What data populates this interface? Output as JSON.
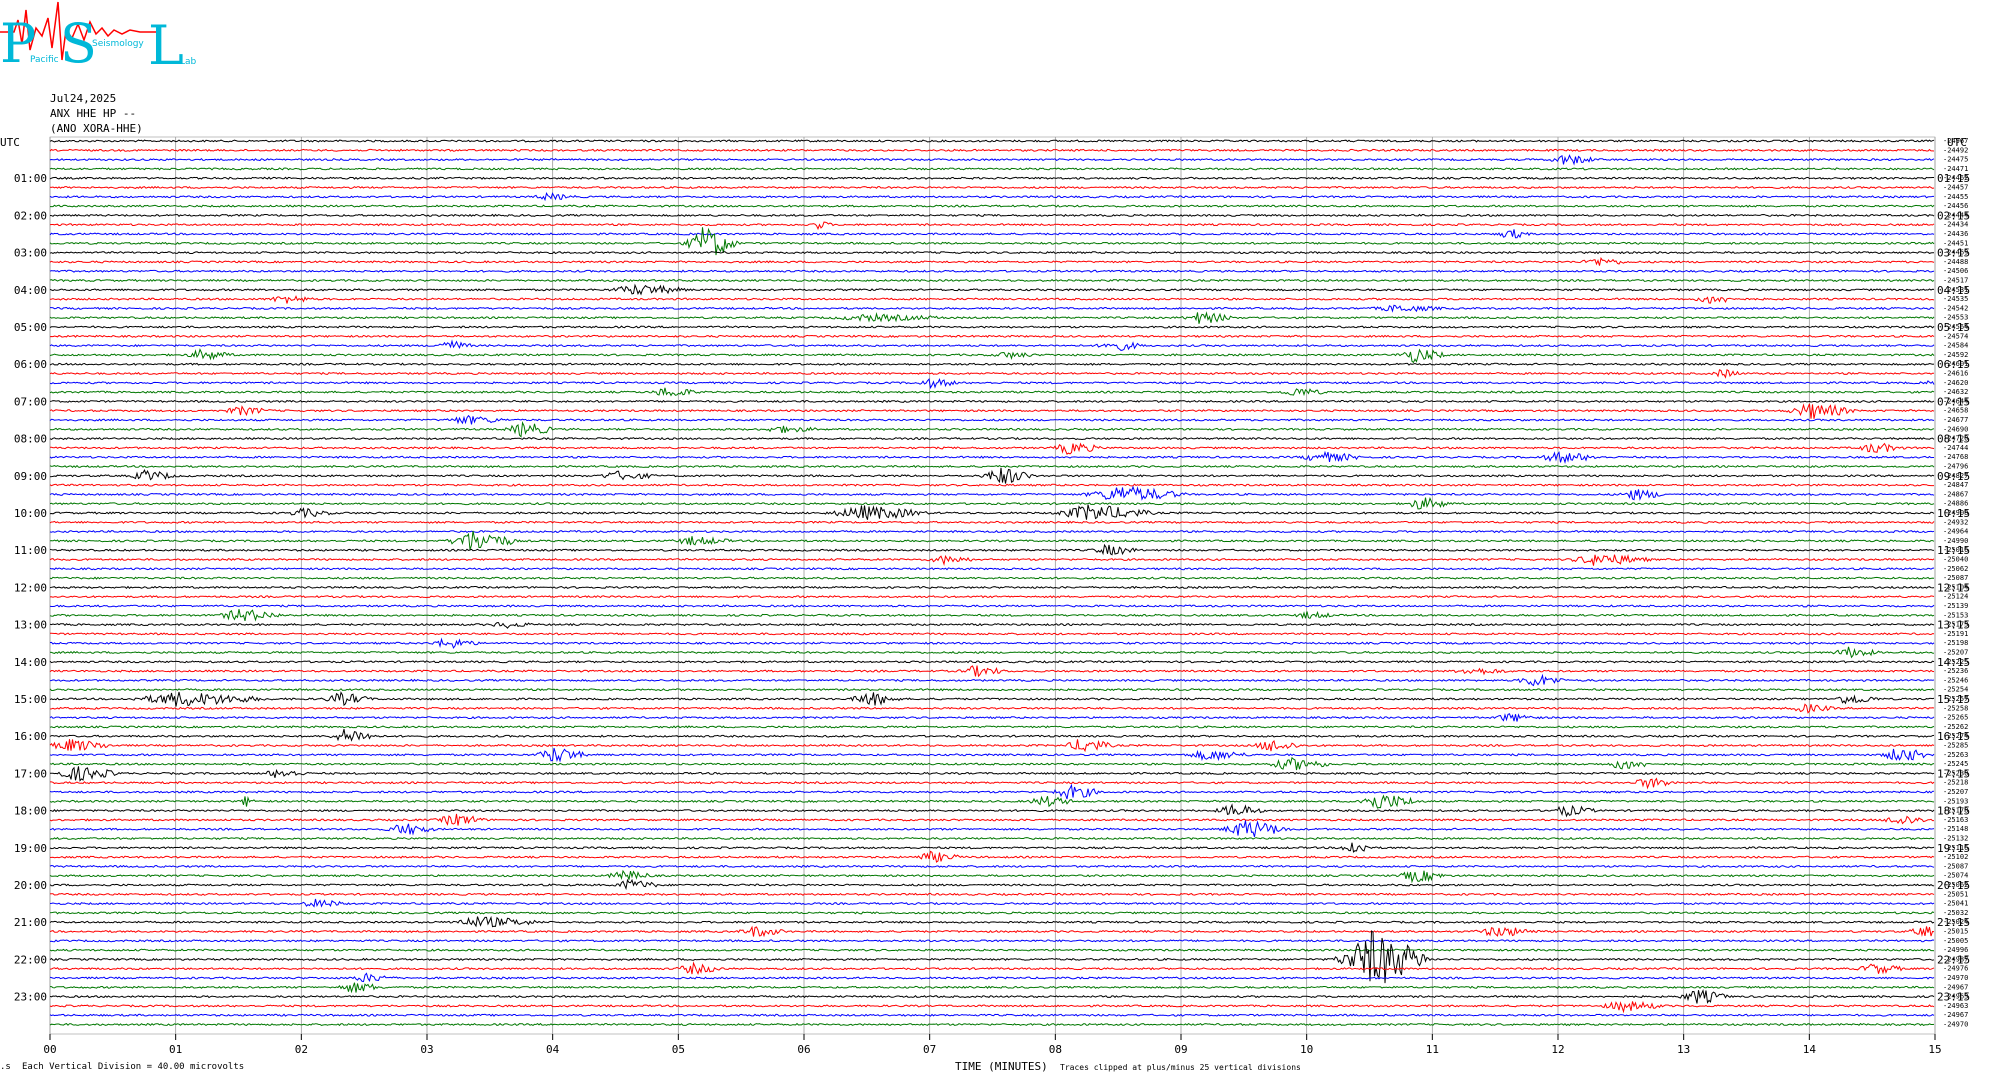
{
  "logo": {
    "letters": [
      "P",
      "S",
      "L"
    ],
    "small_words": [
      "Pacific",
      "Seismology",
      "Lab"
    ],
    "color_letters": "#00b8d8",
    "color_trace": "#ff0000"
  },
  "header": {
    "date": "Jul24,2025",
    "station": "ANX HHE HP --",
    "code": "(ANO XORA-HHE)"
  },
  "footer": {
    "scale": "Each Vertical Division =   40.00 microvolts",
    "xlabel": "TIME (MINUTES)",
    "clip_note": "Traces clipped at plus/minus 25 vertical divisions"
  },
  "chart_data": {
    "type": "line",
    "left_axis_title": "UTC",
    "right_axis_title": "UTC",
    "x_ticks": [
      "00",
      "01",
      "02",
      "03",
      "04",
      "05",
      "06",
      "07",
      "08",
      "09",
      "10",
      "11",
      "12",
      "13",
      "14",
      "15"
    ],
    "x_range": [
      0,
      15
    ],
    "trace_minutes": 15,
    "colors": [
      "#000000",
      "#ff0000",
      "#0000ff",
      "#007700"
    ],
    "left_hour_labels": [
      "01:00",
      "02:00",
      "03:00",
      "04:00",
      "05:00",
      "06:00",
      "07:00",
      "08:00",
      "09:00",
      "10:00",
      "11:00",
      "12:00",
      "13:00",
      "14:00",
      "15:00",
      "16:00",
      "17:00",
      "18:00",
      "19:00",
      "20:00",
      "21:00",
      "22:00",
      "23:00"
    ],
    "right_hour_labels": [
      "01:15",
      "02:15",
      "03:15",
      "04:15",
      "05:15",
      "06:15",
      "07:15",
      "08:15",
      "09:15",
      "10:15",
      "11:15",
      "12:15",
      "13:15",
      "14:15",
      "15:15",
      "16:15",
      "17:15",
      "18:15",
      "19:15",
      "20:15",
      "21:15",
      "22:15",
      "23:15"
    ],
    "offsets": [
      "-24967",
      "-24492",
      "-24475",
      "-24471",
      "-24462",
      "-24457",
      "-24455",
      "-24456",
      "-24444",
      "-24434",
      "-24436",
      "-24451",
      "-24469",
      "-24488",
      "-24506",
      "-24517",
      "-24531",
      "-24535",
      "-24542",
      "-24553",
      "-24564",
      "-24574",
      "-24584",
      "-24592",
      "-24601",
      "-24616",
      "-24620",
      "-24632",
      "-24644",
      "-24658",
      "-24677",
      "-24690",
      "-24720",
      "-24744",
      "-24768",
      "-24796",
      "-24827",
      "-24847",
      "-24867",
      "-24886",
      "-24908",
      "-24932",
      "-24964",
      "-24990",
      "-25016",
      "-25040",
      "-25062",
      "-25087",
      "-25104",
      "-25124",
      "-25139",
      "-25153",
      "-25173",
      "-25191",
      "-25198",
      "-25207",
      "-25225",
      "-25236",
      "-25246",
      "-25254",
      "-25257",
      "-25258",
      "-25265",
      "-25262",
      "-25274",
      "-25285",
      "-25263",
      "-25245",
      "-25230",
      "-25218",
      "-25207",
      "-25193",
      "-25178",
      "-25163",
      "-25148",
      "-25132",
      "-25116",
      "-25102",
      "-25087",
      "-25074",
      "-25062",
      "-25051",
      "-25041",
      "-25032",
      "-25024",
      "-25015",
      "-25005",
      "-24996",
      "-24987",
      "-24976",
      "-24970",
      "-24967",
      "-24963",
      "-24963",
      "-24967",
      "-24970"
    ],
    "events": [
      {
        "trace": 2,
        "minute": 12.05,
        "amp": 6,
        "dur": 0.3
      },
      {
        "trace": 6,
        "minute": 3.95,
        "amp": 4,
        "dur": 0.3
      },
      {
        "trace": 9,
        "minute": 6.1,
        "amp": 5,
        "dur": 0.15
      },
      {
        "trace": 10,
        "minute": 11.6,
        "amp": 6,
        "dur": 0.2
      },
      {
        "trace": 11,
        "minute": 5.2,
        "amp": 18,
        "dur": 0.3
      },
      {
        "trace": 13,
        "minute": 12.3,
        "amp": 5,
        "dur": 0.3
      },
      {
        "trace": 16,
        "minute": 4.65,
        "amp": 6,
        "dur": 0.5
      },
      {
        "trace": 17,
        "minute": 1.85,
        "amp": 5,
        "dur": 0.3
      },
      {
        "trace": 17,
        "minute": 13.2,
        "amp": 5,
        "dur": 0.3
      },
      {
        "trace": 18,
        "minute": 10.7,
        "amp": 4,
        "dur": 0.5
      },
      {
        "trace": 19,
        "minute": 6.5,
        "amp": 4,
        "dur": 0.8
      },
      {
        "trace": 19,
        "minute": 9.15,
        "amp": 7,
        "dur": 0.3
      },
      {
        "trace": 22,
        "minute": 3.15,
        "amp": 6,
        "dur": 0.25
      },
      {
        "trace": 22,
        "minute": 8.45,
        "amp": 6,
        "dur": 0.3
      },
      {
        "trace": 23,
        "minute": 1.2,
        "amp": 6,
        "dur": 0.3
      },
      {
        "trace": 23,
        "minute": 7.6,
        "amp": 4,
        "dur": 0.3
      },
      {
        "trace": 23,
        "minute": 10.85,
        "amp": 8,
        "dur": 0.3
      },
      {
        "trace": 25,
        "minute": 13.3,
        "amp": 5,
        "dur": 0.2
      },
      {
        "trace": 26,
        "minute": 7.0,
        "amp": 5,
        "dur": 0.3
      },
      {
        "trace": 26,
        "minute": 15.0,
        "amp": 6,
        "dur": 0.2
      },
      {
        "trace": 27,
        "minute": 4.9,
        "amp": 6,
        "dur": 0.3
      },
      {
        "trace": 27,
        "minute": 9.9,
        "amp": 5,
        "dur": 0.3
      },
      {
        "trace": 29,
        "minute": 1.5,
        "amp": 5,
        "dur": 0.3
      },
      {
        "trace": 29,
        "minute": 14.0,
        "amp": 9,
        "dur": 0.4
      },
      {
        "trace": 30,
        "minute": 3.3,
        "amp": 5,
        "dur": 0.4
      },
      {
        "trace": 31,
        "minute": 3.75,
        "amp": 8,
        "dur": 0.3
      },
      {
        "trace": 31,
        "minute": 5.8,
        "amp": 4,
        "dur": 0.4
      },
      {
        "trace": 33,
        "minute": 8.1,
        "amp": 7,
        "dur": 0.3
      },
      {
        "trace": 33,
        "minute": 14.5,
        "amp": 6,
        "dur": 0.3
      },
      {
        "trace": 34,
        "minute": 10.1,
        "amp": 6,
        "dur": 0.4
      },
      {
        "trace": 34,
        "minute": 12.0,
        "amp": 6,
        "dur": 0.4
      },
      {
        "trace": 36,
        "minute": 0.75,
        "amp": 6,
        "dur": 0.3
      },
      {
        "trace": 36,
        "minute": 4.5,
        "amp": 5,
        "dur": 0.4
      },
      {
        "trace": 36,
        "minute": 7.55,
        "amp": 10,
        "dur": 0.3
      },
      {
        "trace": 38,
        "minute": 8.5,
        "amp": 9,
        "dur": 0.6
      },
      {
        "trace": 38,
        "minute": 12.6,
        "amp": 6,
        "dur": 0.3
      },
      {
        "trace": 39,
        "minute": 10.9,
        "amp": 7,
        "dur": 0.3
      },
      {
        "trace": 40,
        "minute": 2.0,
        "amp": 5,
        "dur": 0.3
      },
      {
        "trace": 40,
        "minute": 6.45,
        "amp": 8,
        "dur": 0.6
      },
      {
        "trace": 40,
        "minute": 8.25,
        "amp": 9,
        "dur": 0.6
      },
      {
        "trace": 43,
        "minute": 3.35,
        "amp": 12,
        "dur": 0.4
      },
      {
        "trace": 43,
        "minute": 5.1,
        "amp": 5,
        "dur": 0.4
      },
      {
        "trace": 44,
        "minute": 8.4,
        "amp": 6,
        "dur": 0.3
      },
      {
        "trace": 45,
        "minute": 7.1,
        "amp": 5,
        "dur": 0.3
      },
      {
        "trace": 45,
        "minute": 12.3,
        "amp": 7,
        "dur": 0.5
      },
      {
        "trace": 51,
        "minute": 1.5,
        "amp": 7,
        "dur": 0.4
      },
      {
        "trace": 51,
        "minute": 10.0,
        "amp": 4,
        "dur": 0.3
      },
      {
        "trace": 52,
        "minute": 3.6,
        "amp": 4,
        "dur": 0.3
      },
      {
        "trace": 54,
        "minute": 3.15,
        "amp": 6,
        "dur": 0.3
      },
      {
        "trace": 55,
        "minute": 14.3,
        "amp": 6,
        "dur": 0.3
      },
      {
        "trace": 57,
        "minute": 7.35,
        "amp": 6,
        "dur": 0.3
      },
      {
        "trace": 57,
        "minute": 11.3,
        "amp": 4,
        "dur": 0.4
      },
      {
        "trace": 58,
        "minute": 11.8,
        "amp": 7,
        "dur": 0.3
      },
      {
        "trace": 60,
        "minute": 1.0,
        "amp": 8,
        "dur": 0.8
      },
      {
        "trace": 60,
        "minute": 2.3,
        "amp": 7,
        "dur": 0.3
      },
      {
        "trace": 60,
        "minute": 6.5,
        "amp": 8,
        "dur": 0.3
      },
      {
        "trace": 60,
        "minute": 14.3,
        "amp": 6,
        "dur": 0.3
      },
      {
        "trace": 61,
        "minute": 13.95,
        "amp": 5,
        "dur": 0.3
      },
      {
        "trace": 62,
        "minute": 11.6,
        "amp": 5,
        "dur": 0.3
      },
      {
        "trace": 64,
        "minute": 2.35,
        "amp": 8,
        "dur": 0.3
      },
      {
        "trace": 65,
        "minute": 0.15,
        "amp": 7,
        "dur": 0.4
      },
      {
        "trace": 65,
        "minute": 8.2,
        "amp": 8,
        "dur": 0.3
      },
      {
        "trace": 65,
        "minute": 9.7,
        "amp": 7,
        "dur": 0.3
      },
      {
        "trace": 66,
        "minute": 4.0,
        "amp": 9,
        "dur": 0.3
      },
      {
        "trace": 66,
        "minute": 9.2,
        "amp": 6,
        "dur": 0.4
      },
      {
        "trace": 66,
        "minute": 14.7,
        "amp": 8,
        "dur": 0.3
      },
      {
        "trace": 67,
        "minute": 9.85,
        "amp": 7,
        "dur": 0.4
      },
      {
        "trace": 67,
        "minute": 12.5,
        "amp": 6,
        "dur": 0.3
      },
      {
        "trace": 68,
        "minute": 0.2,
        "amp": 8,
        "dur": 0.4
      },
      {
        "trace": 68,
        "minute": 1.8,
        "amp": 5,
        "dur": 0.3
      },
      {
        "trace": 69,
        "minute": 12.7,
        "amp": 6,
        "dur": 0.3
      },
      {
        "trace": 70,
        "minute": 8.1,
        "amp": 8,
        "dur": 0.3
      },
      {
        "trace": 71,
        "minute": 1.55,
        "amp": 6,
        "dur": 0.1
      },
      {
        "trace": 71,
        "minute": 7.9,
        "amp": 6,
        "dur": 0.3
      },
      {
        "trace": 71,
        "minute": 10.55,
        "amp": 9,
        "dur": 0.4
      },
      {
        "trace": 72,
        "minute": 9.4,
        "amp": 7,
        "dur": 0.3
      },
      {
        "trace": 72,
        "minute": 12.05,
        "amp": 6,
        "dur": 0.3
      },
      {
        "trace": 73,
        "minute": 3.2,
        "amp": 7,
        "dur": 0.3
      },
      {
        "trace": 73,
        "minute": 14.7,
        "amp": 6,
        "dur": 0.3
      },
      {
        "trace": 74,
        "minute": 2.8,
        "amp": 7,
        "dur": 0.3
      },
      {
        "trace": 74,
        "minute": 9.5,
        "amp": 10,
        "dur": 0.4
      },
      {
        "trace": 76,
        "minute": 10.35,
        "amp": 8,
        "dur": 0.2
      },
      {
        "trace": 77,
        "minute": 7.0,
        "amp": 6,
        "dur": 0.3
      },
      {
        "trace": 79,
        "minute": 4.55,
        "amp": 6,
        "dur": 0.3
      },
      {
        "trace": 79,
        "minute": 10.85,
        "amp": 7,
        "dur": 0.3
      },
      {
        "trace": 80,
        "minute": 4.6,
        "amp": 6,
        "dur": 0.3
      },
      {
        "trace": 82,
        "minute": 2.1,
        "amp": 5,
        "dur": 0.3
      },
      {
        "trace": 84,
        "minute": 3.4,
        "amp": 6,
        "dur": 0.6
      },
      {
        "trace": 85,
        "minute": 5.6,
        "amp": 6,
        "dur": 0.3
      },
      {
        "trace": 85,
        "minute": 11.5,
        "amp": 6,
        "dur": 0.4
      },
      {
        "trace": 85,
        "minute": 14.9,
        "amp": 6,
        "dur": 0.3
      },
      {
        "trace": 88,
        "minute": 10.5,
        "amp": 30,
        "dur": 0.5
      },
      {
        "trace": 89,
        "minute": 5.1,
        "amp": 6,
        "dur": 0.3
      },
      {
        "trace": 89,
        "minute": 14.5,
        "amp": 6,
        "dur": 0.3
      },
      {
        "trace": 90,
        "minute": 2.5,
        "amp": 5,
        "dur": 0.3
      },
      {
        "trace": 91,
        "minute": 2.4,
        "amp": 6,
        "dur": 0.3
      },
      {
        "trace": 92,
        "minute": 13.1,
        "amp": 8,
        "dur": 0.3
      },
      {
        "trace": 93,
        "minute": 12.5,
        "amp": 6,
        "dur": 0.4
      }
    ]
  }
}
